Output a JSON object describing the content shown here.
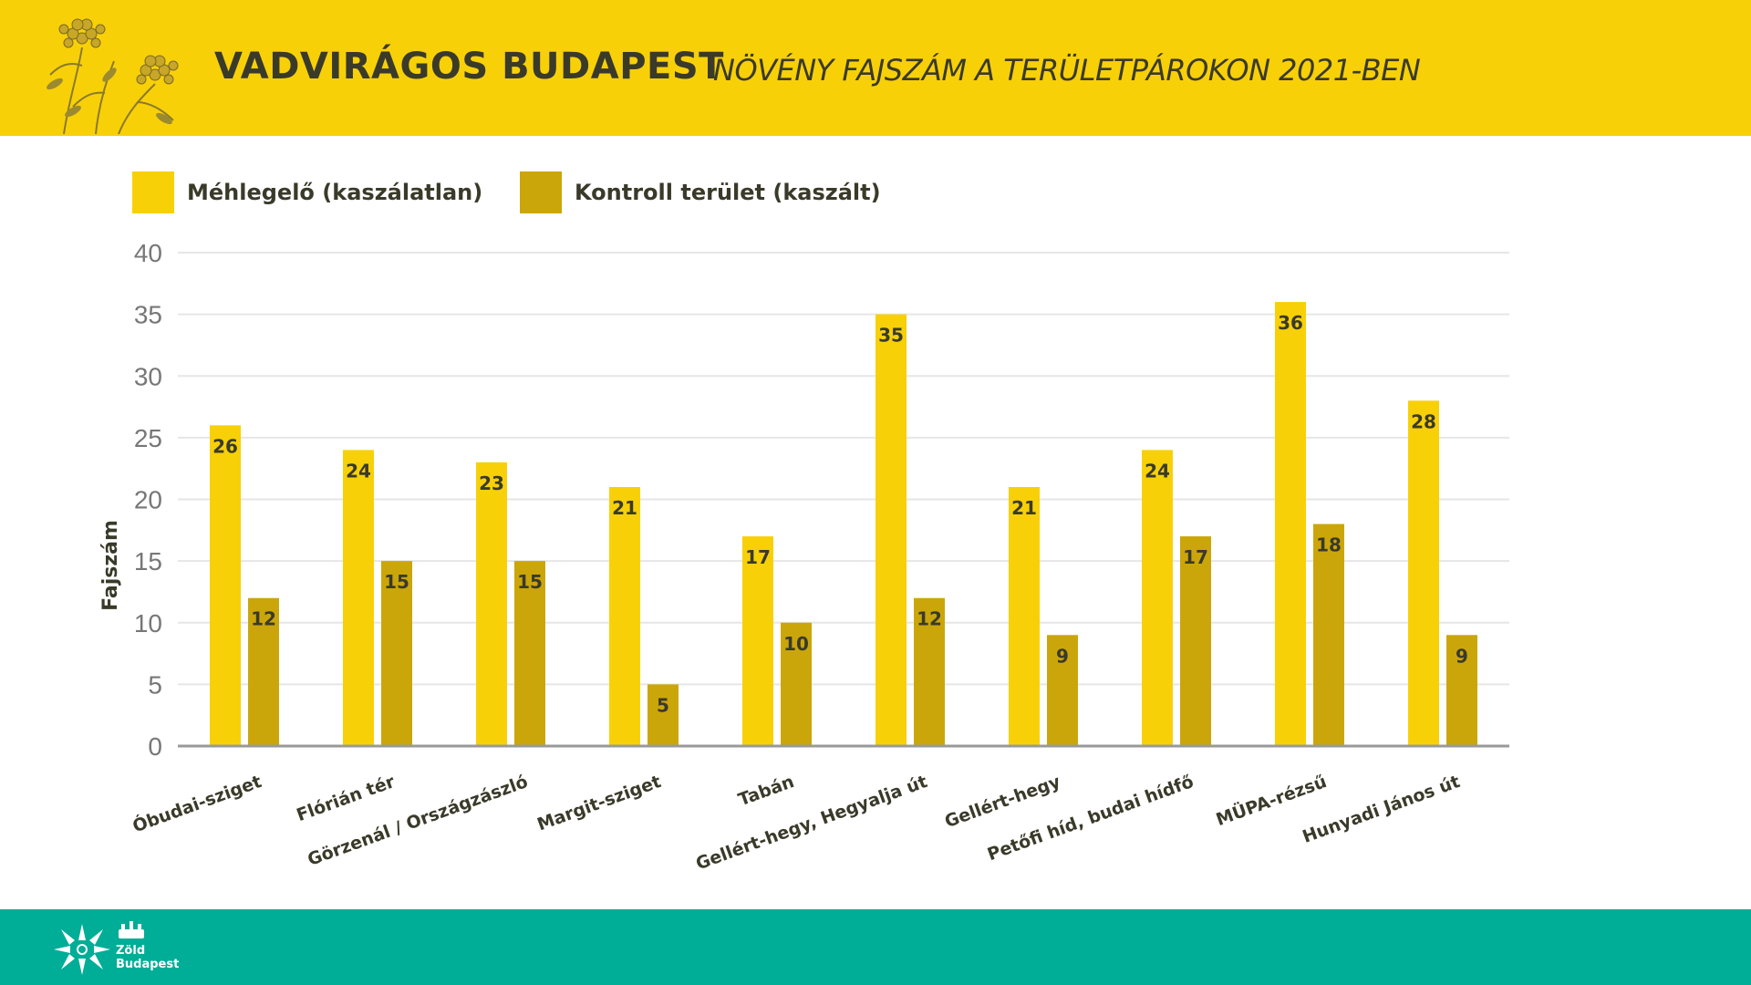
{
  "header": {
    "title": "VADVIRÁGOS BUDAPEST",
    "subtitle": "NÖVÉNY FAJSZÁM A TERÜLETPÁROKON 2021-BEN",
    "logo_icon": "yarrow-flower-icon"
  },
  "colors": {
    "header_bg": "#f8d008",
    "series_1": "#f8d008",
    "series_2": "#cba60a",
    "footer_bg": "#00ad97",
    "text": "#3a3a2a",
    "axis": "#999999",
    "grid": "#e6e6e6"
  },
  "footer": {
    "logo_icon": "zold-budapest-sun-icon",
    "crest_icon": "budapest-crest-icon",
    "line1": "Zöld",
    "line2": "Budapest"
  },
  "chart_data": {
    "type": "bar",
    "ylabel": "Fajszám",
    "xlabel": "",
    "ylim": [
      0,
      40
    ],
    "yticks": [
      0,
      5,
      10,
      15,
      20,
      25,
      30,
      35,
      40
    ],
    "grid": true,
    "legend_position": "top-left",
    "categories": [
      "Óbudai-sziget",
      "Flórián tér",
      "Görzenál / Országzászló",
      "Margit-sziget",
      "Tabán",
      "Gellért-hegy, Hegyalja út",
      "Gellért-hegy",
      "Petőfi híd, budai hídfő",
      "MÜPA-rézsű",
      "Hunyadi János út"
    ],
    "series": [
      {
        "name": "Méhlegelő (kaszálatlan)",
        "values": [
          26,
          24,
          23,
          21,
          17,
          35,
          21,
          24,
          36,
          28
        ]
      },
      {
        "name": "Kontroll terület (kaszált)",
        "values": [
          12,
          15,
          15,
          5,
          10,
          12,
          9,
          17,
          18,
          9
        ]
      }
    ]
  }
}
